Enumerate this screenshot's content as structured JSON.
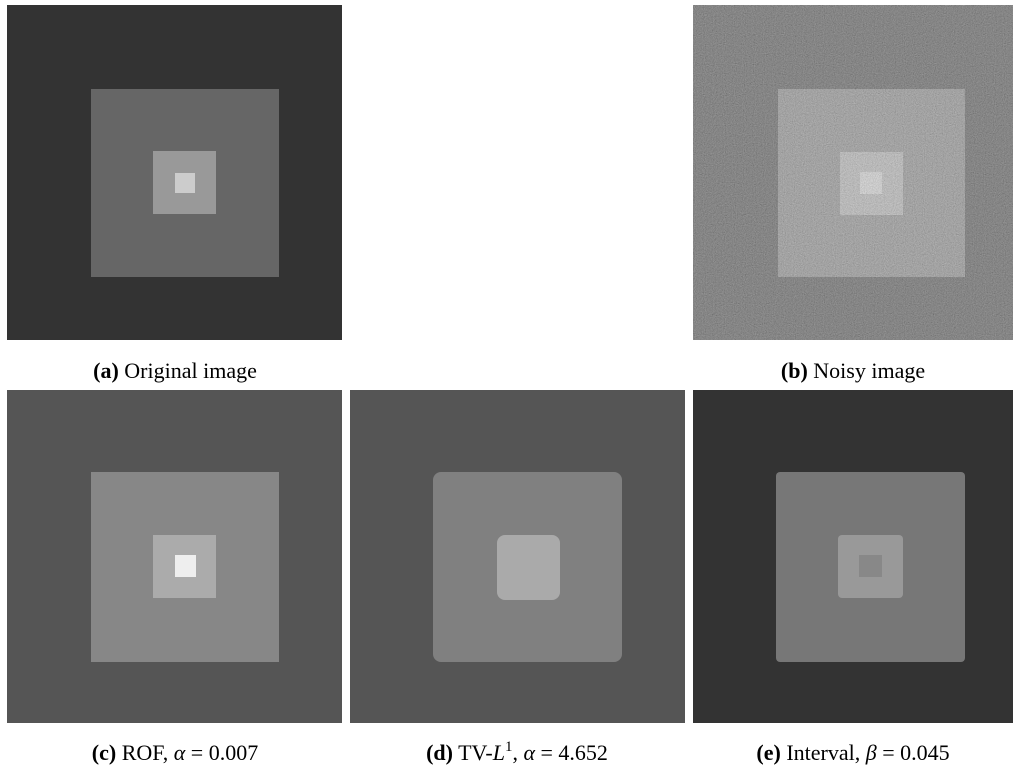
{
  "captions": {
    "a": {
      "label": "(a)",
      "parts": [
        "Original image"
      ]
    },
    "b": {
      "label": "(b)",
      "parts": [
        "Noisy image"
      ]
    },
    "c": {
      "label": "(c)",
      "parts": [
        "ROF, ",
        "α",
        " = 0.007"
      ]
    },
    "d": {
      "label": "(d)",
      "parts": [
        "TV-",
        "L",
        "1",
        ", ",
        "α",
        " = 4.652"
      ]
    },
    "e": {
      "label": "(e)",
      "parts": [
        "Interval, ",
        "β",
        " = 0.045"
      ]
    }
  }
}
